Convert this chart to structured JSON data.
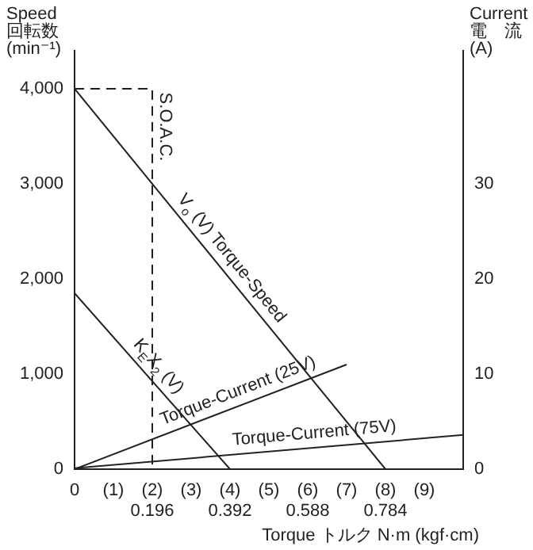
{
  "chart_data": {
    "type": "line",
    "xlabel": "Torque トルク N·m (kgf·cm)",
    "ylabel": "Speed\n回転数\n(min⁻¹)",
    "y2label": "Current\n電　流\n(A)",
    "xlim": [
      0,
      10
    ],
    "xticks": [
      0,
      {
        "value": 1,
        "label": "(1)"
      },
      {
        "value": 2,
        "label": "(2)"
      },
      {
        "value": 3,
        "label": "(3)"
      },
      {
        "value": 4,
        "label": "(4)"
      },
      {
        "value": 5,
        "label": "(5)"
      },
      {
        "value": 6,
        "label": "(6)"
      },
      {
        "value": 7,
        "label": "(7)"
      },
      {
        "value": 8,
        "label": "(8)"
      },
      {
        "value": 9,
        "label": "(9)"
      }
    ],
    "x2lim": [
      0,
      0.98
    ],
    "x2ticks": [
      0.196,
      0.392,
      0.588,
      0.784
    ],
    "ylim": [
      0,
      4400
    ],
    "yticks": [
      0,
      {
        "value": 1000,
        "label": "1,000"
      },
      {
        "value": 2000,
        "label": "2,000"
      },
      {
        "value": 3000,
        "label": "3,000"
      },
      {
        "value": 4000,
        "label": "4,000"
      }
    ],
    "y2lim": [
      0,
      44
    ],
    "y2ticks": [
      0,
      10,
      20,
      30
    ],
    "grid": false,
    "legend": false,
    "series": [
      {
        "name": "S.O.A.C.",
        "color": "#222222",
        "line_style": "dashed",
        "x": [
          0,
          2,
          2
        ],
        "values": [
          4000,
          4000,
          0
        ]
      },
      {
        "name": "V$_{o}$ (V) Torque-Speed",
        "color": "#222222",
        "line_style": "solid",
        "x": [
          0,
          8
        ],
        "values": [
          4000,
          0
        ]
      },
      {
        "name": "K$_{E}$X$_{2}$ (V)",
        "color": "#222222",
        "line_style": "solid",
        "x": [
          0,
          4
        ],
        "values": [
          1850,
          0
        ]
      },
      {
        "name": "Torque-Current (25V)",
        "color": "#222222",
        "line_style": "solid",
        "axis": "y2",
        "x": [
          0,
          7
        ],
        "values": [
          0,
          11
        ]
      },
      {
        "name": "Torque-Current (75V)",
        "color": "#222222",
        "line_style": "solid",
        "axis": "y2",
        "x": [
          0,
          10
        ],
        "values": [
          0.1,
          3.6
        ]
      }
    ]
  }
}
